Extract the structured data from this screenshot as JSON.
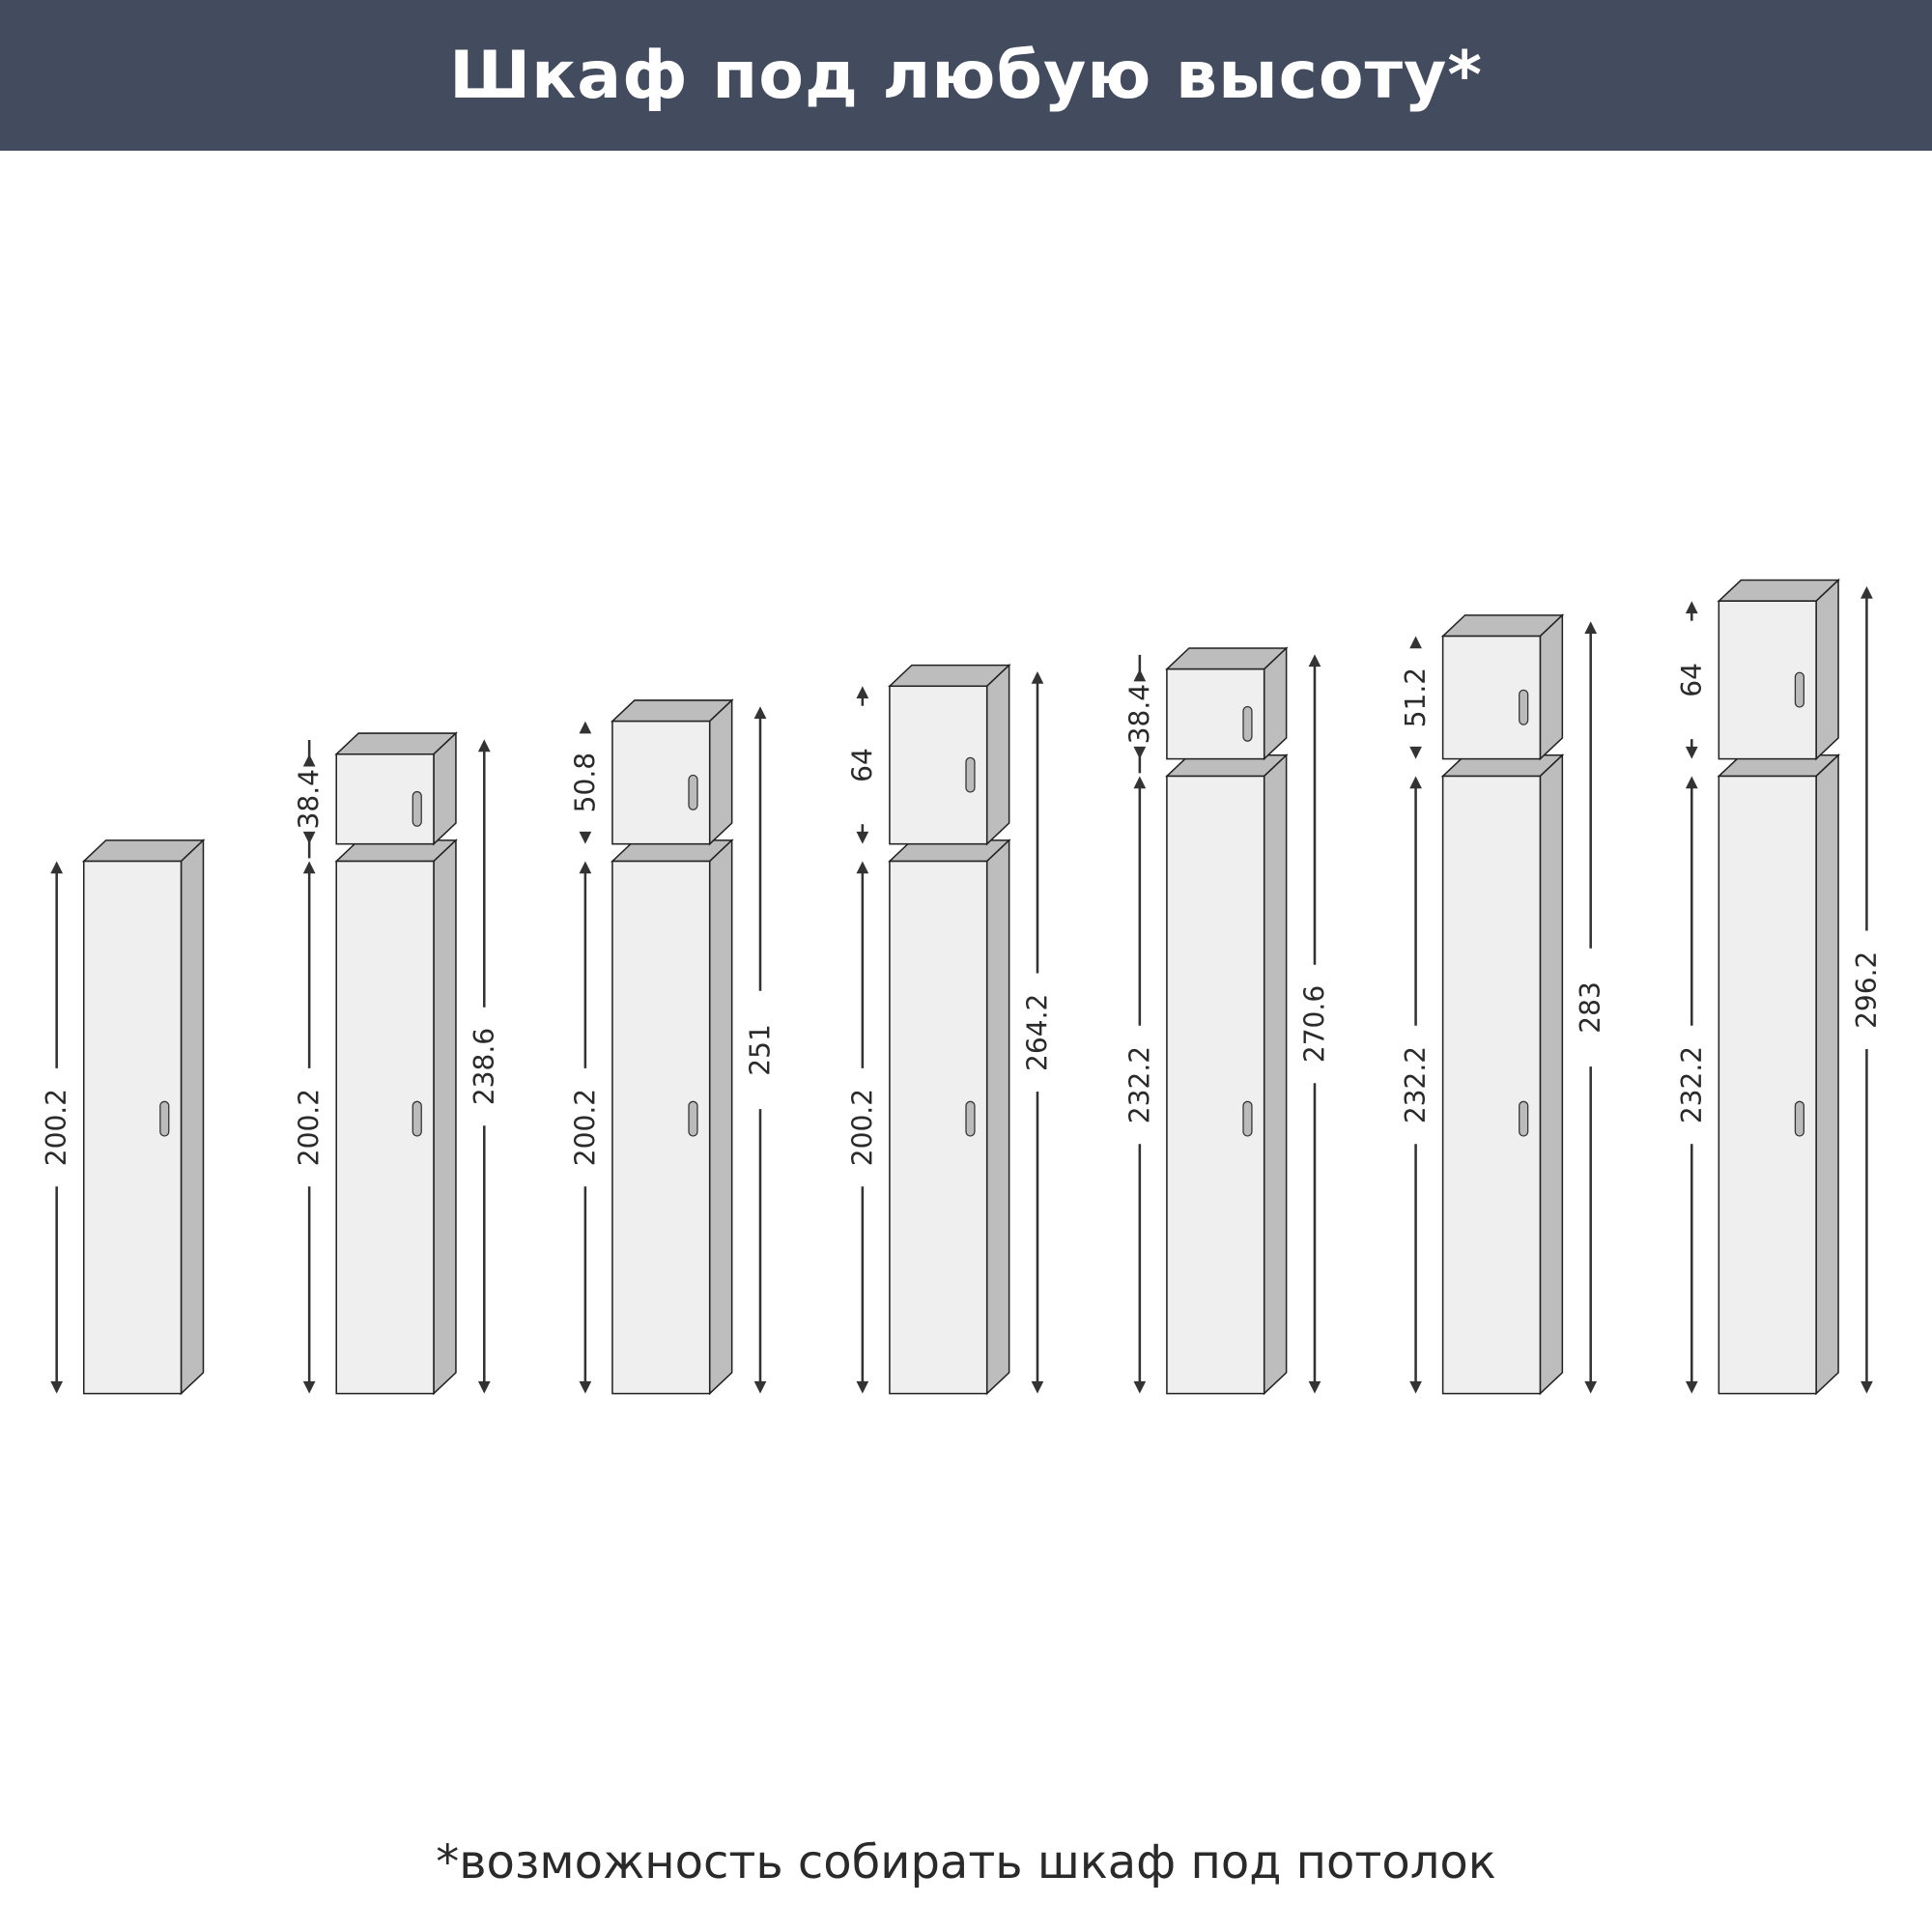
{
  "header": {
    "title": "Шкаф под любую высоту*"
  },
  "footnote": "*возможность собирать шкаф под потолок",
  "colors": {
    "header_bg": "#434c5f",
    "front": "#efefef",
    "side": "#bdbdbd",
    "line": "#333333"
  },
  "cabinets": [
    {
      "lower": "200.2",
      "upper": null,
      "total": null
    },
    {
      "lower": "200.2",
      "upper": "38.4",
      "total": "238.6"
    },
    {
      "lower": "200.2",
      "upper": "50.8",
      "total": "251"
    },
    {
      "lower": "200.2",
      "upper": "64",
      "total": "264.2"
    },
    {
      "lower": "232.2",
      "upper": "38.4",
      "total": "270.6"
    },
    {
      "lower": "232.2",
      "upper": "51.2",
      "total": "283"
    },
    {
      "lower": "232.2",
      "upper": "64",
      "total": "296.2"
    }
  ]
}
